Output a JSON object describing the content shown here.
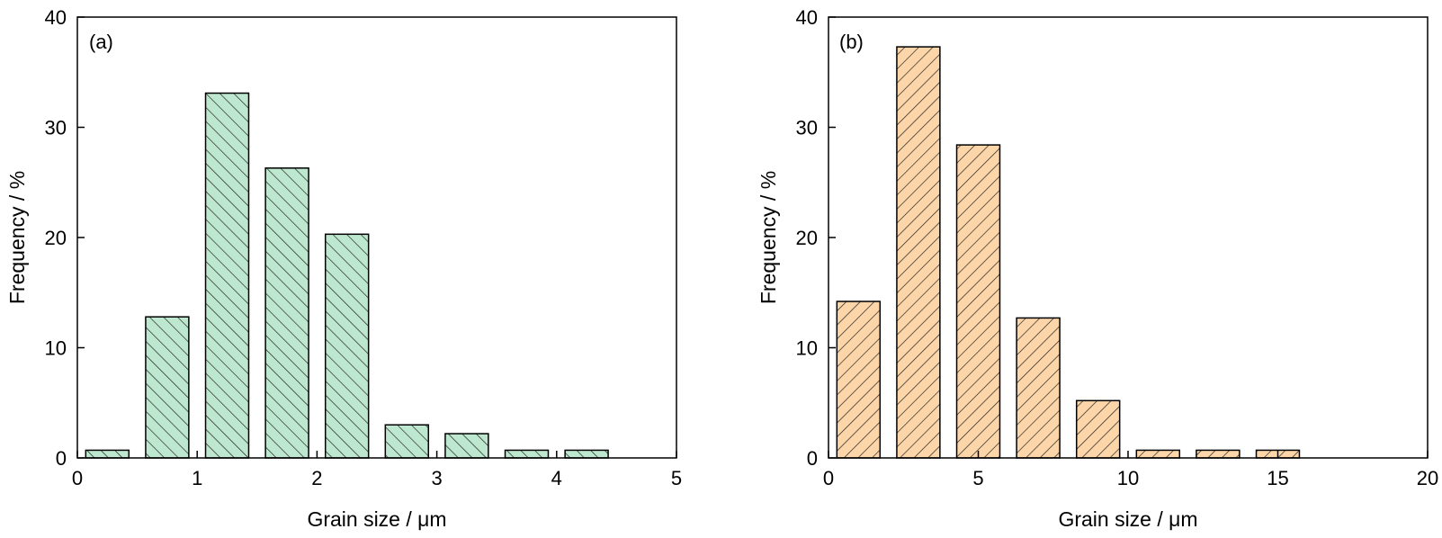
{
  "chart_data": [
    {
      "type": "bar",
      "panel_label": "(a)",
      "xlabel": "Grain size / μm",
      "ylabel": "Frequency / %",
      "xlim": [
        0,
        5
      ],
      "ylim": [
        0,
        40
      ],
      "xticks": [
        "0",
        "1",
        "2",
        "3",
        "4",
        "5"
      ],
      "yticks": [
        "0",
        "10",
        "20",
        "30",
        "40"
      ],
      "bin_width": 0.5,
      "bar_fraction": 0.72,
      "x": [
        0.25,
        0.75,
        1.25,
        1.75,
        2.25,
        2.75,
        3.25,
        3.75,
        4.25
      ],
      "values": [
        0.7,
        12.8,
        33.1,
        26.3,
        20.3,
        3.0,
        2.2,
        0.7,
        0.7
      ],
      "fill_color": "#bde8cf",
      "hatch": "backslash"
    },
    {
      "type": "bar",
      "panel_label": "(b)",
      "xlabel": "Grain size / μm",
      "ylabel": "Frequency / %",
      "xlim": [
        0,
        20
      ],
      "ylim": [
        0,
        40
      ],
      "xticks": [
        "0",
        "5",
        "10",
        "15",
        "20"
      ],
      "yticks": [
        "0",
        "10",
        "20",
        "30",
        "40"
      ],
      "bin_width": 2,
      "bar_fraction": 0.72,
      "x": [
        1,
        3,
        5,
        7,
        9,
        11,
        13,
        15
      ],
      "values": [
        14.2,
        37.3,
        28.4,
        12.7,
        5.2,
        0.7,
        0.7,
        0.7
      ],
      "fill_color": "#fcd5a9",
      "hatch": "slash"
    }
  ]
}
